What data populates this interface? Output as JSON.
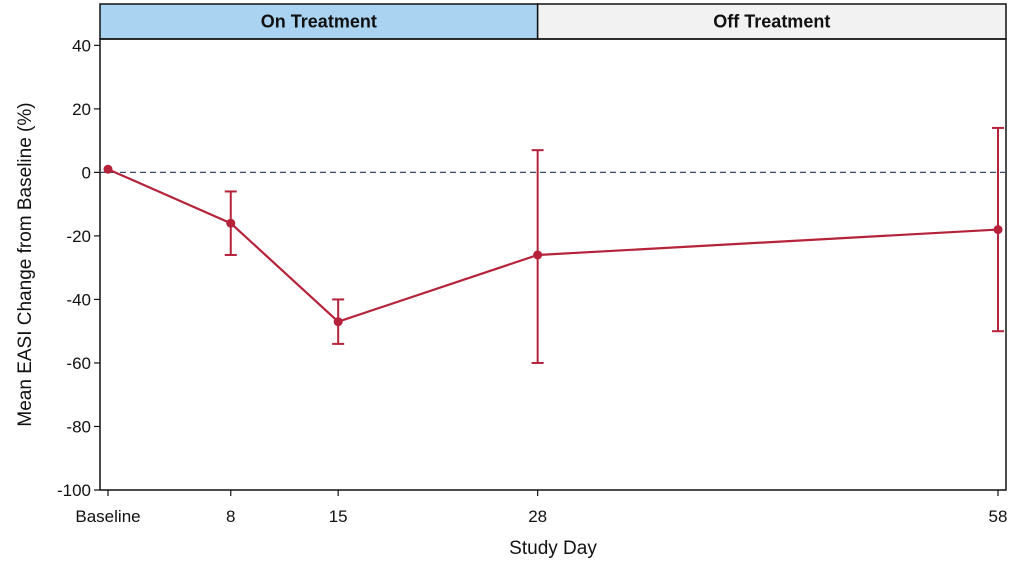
{
  "chart_data": {
    "type": "line",
    "xlabel": "Study Day",
    "ylabel": "Mean EASI Change from Baseline (%)",
    "panels": [
      {
        "label": "On Treatment",
        "x_start": 0,
        "x_end": 28,
        "color": "#a9d3f0"
      },
      {
        "label": "Off Treatment",
        "x_start": 28,
        "x_end": 58,
        "color": "#f2f2f2"
      }
    ],
    "x": [
      0,
      8,
      15,
      28,
      58
    ],
    "x_tick_labels": [
      "Baseline",
      "8",
      "15",
      "28",
      "58"
    ],
    "x_range": [
      -0.2,
      58.2
    ],
    "ylim": [
      -100,
      42
    ],
    "y_ticks": [
      40,
      20,
      0,
      -20,
      -40,
      -60,
      -80,
      -100
    ],
    "y_tick_labels": [
      "40",
      "20",
      "0",
      "-20",
      "-40",
      "-60",
      "-80",
      "-100"
    ],
    "reference_line": {
      "y": 0,
      "style": "dashed",
      "color": "#3f4a6b"
    },
    "series": [
      {
        "color": "#b5223a",
        "values": [
          1,
          -16,
          -47,
          -26,
          -18
        ],
        "error_lower": [
          1,
          -26,
          -54,
          -60,
          -50
        ],
        "error_upper": [
          1,
          -6,
          -40,
          7,
          14
        ]
      }
    ],
    "grid": false,
    "legend": "none"
  }
}
